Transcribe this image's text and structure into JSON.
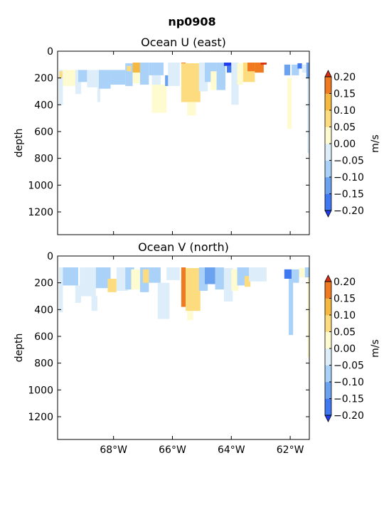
{
  "figure": {
    "suptitle": "np0908"
  },
  "colorscale": {
    "levels": [
      -0.2,
      -0.15,
      -0.1,
      -0.05,
      0.0,
      0.05,
      0.1,
      0.15,
      0.2
    ],
    "level_labels": [
      "−0.20",
      "−0.15",
      "−0.10",
      "−0.05",
      "0.00",
      "0.05",
      "0.10",
      "0.15",
      "0.20"
    ],
    "colors": [
      "#1f3cf0",
      "#3f78f0",
      "#6aa2f0",
      "#aad2f8",
      "#ddeefa",
      "#fffbd0",
      "#fddc80",
      "#f5b840",
      "#f07a20",
      "#d83010"
    ],
    "label": "m/s"
  },
  "chart_data": [
    {
      "type": "heatmap",
      "title": "Ocean U (east)",
      "ylabel": "depth",
      "xlabel": "",
      "xlim": [
        -69.9,
        -61.35
      ],
      "ylim": [
        1370,
        0
      ],
      "yticks": [
        0,
        200,
        400,
        600,
        800,
        1000,
        1200
      ],
      "xticks": [
        -68,
        -66,
        -64,
        -62
      ],
      "xtick_labels": [
        "",
        "",
        "",
        ""
      ],
      "colorbar_label": "m/s",
      "cells": [
        {
          "x0": -69.85,
          "x1": -69.72,
          "d0": 140,
          "d1": 400,
          "v": -0.03
        },
        {
          "x0": -69.84,
          "x1": -69.74,
          "d0": 150,
          "d1": 200,
          "v": 0.07
        },
        {
          "x0": -69.72,
          "x1": -69.2,
          "d0": 140,
          "d1": 260,
          "v": 0.02
        },
        {
          "x0": -69.3,
          "x1": -69.1,
          "d0": 140,
          "d1": 320,
          "v": -0.02
        },
        {
          "x0": -69.2,
          "x1": -68.9,
          "d0": 140,
          "d1": 230,
          "v": -0.07
        },
        {
          "x0": -68.9,
          "x1": -68.5,
          "d0": 140,
          "d1": 270,
          "v": -0.03
        },
        {
          "x0": -68.55,
          "x1": -68.45,
          "d0": 250,
          "d1": 380,
          "v": -0.02
        },
        {
          "x0": -68.5,
          "x1": -68.1,
          "d0": 140,
          "d1": 280,
          "v": -0.07
        },
        {
          "x0": -68.1,
          "x1": -67.6,
          "d0": 140,
          "d1": 250,
          "v": -0.08
        },
        {
          "x0": -67.6,
          "x1": -67.35,
          "d0": 90,
          "d1": 260,
          "v": -0.06
        },
        {
          "x0": -67.55,
          "x1": -67.4,
          "d0": 110,
          "d1": 150,
          "v": 0.07
        },
        {
          "x0": -67.35,
          "x1": -67.1,
          "d0": 85,
          "d1": 160,
          "v": 0.1
        },
        {
          "x0": -67.35,
          "x1": -67.1,
          "d0": 160,
          "d1": 240,
          "v": 0.03
        },
        {
          "x0": -67.1,
          "x1": -66.8,
          "d0": 85,
          "d1": 250,
          "v": -0.07
        },
        {
          "x0": -66.8,
          "x1": -66.3,
          "d0": 85,
          "d1": 180,
          "v": -0.09
        },
        {
          "x0": -66.7,
          "x1": -66.4,
          "d0": 180,
          "d1": 270,
          "v": -0.04
        },
        {
          "x0": -66.7,
          "x1": -66.2,
          "d0": 250,
          "d1": 460,
          "v": 0.03
        },
        {
          "x0": -66.25,
          "x1": -66.1,
          "d0": 180,
          "d1": 260,
          "v": -0.12
        },
        {
          "x0": -66.15,
          "x1": -65.75,
          "d0": 85,
          "d1": 260,
          "v": -0.05
        },
        {
          "x0": -65.7,
          "x1": -65.55,
          "d0": 85,
          "d1": 100,
          "v": 0.18
        },
        {
          "x0": -65.7,
          "x1": -65.05,
          "d0": 90,
          "d1": 380,
          "v": 0.08
        },
        {
          "x0": -65.5,
          "x1": -65.2,
          "d0": 380,
          "d1": 480,
          "v": 0.04
        },
        {
          "x0": -65.1,
          "x1": -64.8,
          "d0": 85,
          "d1": 300,
          "v": -0.05
        },
        {
          "x0": -64.9,
          "x1": -64.5,
          "d0": 85,
          "d1": 230,
          "v": -0.07
        },
        {
          "x0": -64.7,
          "x1": -64.5,
          "d0": 150,
          "d1": 290,
          "v": 0.04
        },
        {
          "x0": -64.5,
          "x1": -64.2,
          "d0": 85,
          "d1": 290,
          "v": -0.07
        },
        {
          "x0": -64.25,
          "x1": -64.0,
          "d0": 85,
          "d1": 110,
          "v": -0.22
        },
        {
          "x0": -64.15,
          "x1": -63.95,
          "d0": 110,
          "d1": 160,
          "v": -0.18
        },
        {
          "x0": -64.0,
          "x1": -63.75,
          "d0": 85,
          "d1": 400,
          "v": -0.04
        },
        {
          "x0": -63.8,
          "x1": -63.6,
          "d0": 90,
          "d1": 250,
          "v": 0.03
        },
        {
          "x0": -63.6,
          "x1": -63.2,
          "d0": 85,
          "d1": 230,
          "v": 0.08
        },
        {
          "x0": -63.45,
          "x1": -63.2,
          "d0": 85,
          "d1": 150,
          "v": 0.16
        },
        {
          "x0": -63.2,
          "x1": -62.9,
          "d0": 85,
          "d1": 160,
          "v": 0.18
        },
        {
          "x0": -63.0,
          "x1": -62.8,
          "d0": 85,
          "d1": 100,
          "v": 0.22
        },
        {
          "x0": -62.2,
          "x1": -62.0,
          "d0": 100,
          "d1": 180,
          "v": -0.13
        },
        {
          "x0": -62.1,
          "x1": -61.95,
          "d0": 200,
          "d1": 580,
          "v": 0.03
        },
        {
          "x0": -61.95,
          "x1": -61.7,
          "d0": 100,
          "d1": 180,
          "v": -0.08
        },
        {
          "x0": -61.75,
          "x1": -61.6,
          "d0": 90,
          "d1": 130,
          "v": -0.16
        },
        {
          "x0": -61.6,
          "x1": -61.45,
          "d0": 100,
          "d1": 160,
          "v": -0.04
        },
        {
          "x0": -61.45,
          "x1": -61.35,
          "d0": 85,
          "d1": 200,
          "v": -0.13
        },
        {
          "x0": -61.42,
          "x1": -61.35,
          "d0": 200,
          "d1": 760,
          "v": -0.02
        }
      ]
    },
    {
      "type": "heatmap",
      "title": "Ocean V (north)",
      "ylabel": "depth",
      "xlabel": "",
      "xlim": [
        -69.9,
        -61.35
      ],
      "ylim": [
        1370,
        0
      ],
      "yticks": [
        0,
        200,
        400,
        600,
        800,
        1000,
        1200
      ],
      "xticks": [
        -68,
        -66,
        -64,
        -62
      ],
      "xtick_labels": [
        "68°W",
        "66°W",
        "64°W",
        "62°W"
      ],
      "colorbar_label": "m/s",
      "cells": [
        {
          "x0": -69.85,
          "x1": -69.72,
          "d0": 85,
          "d1": 420,
          "v": -0.03
        },
        {
          "x0": -69.72,
          "x1": -69.2,
          "d0": 85,
          "d1": 220,
          "v": -0.07
        },
        {
          "x0": -69.3,
          "x1": -69.1,
          "d0": 220,
          "d1": 350,
          "v": -0.02
        },
        {
          "x0": -69.15,
          "x1": -68.6,
          "d0": 85,
          "d1": 300,
          "v": -0.03
        },
        {
          "x0": -68.75,
          "x1": -68.55,
          "d0": 300,
          "d1": 410,
          "v": -0.02
        },
        {
          "x0": -68.6,
          "x1": -68.1,
          "d0": 85,
          "d1": 240,
          "v": -0.06
        },
        {
          "x0": -68.2,
          "x1": -67.9,
          "d0": 170,
          "d1": 270,
          "v": 0.07
        },
        {
          "x0": -67.9,
          "x1": -67.5,
          "d0": 85,
          "d1": 260,
          "v": -0.04
        },
        {
          "x0": -67.6,
          "x1": -67.3,
          "d0": 85,
          "d1": 250,
          "v": -0.08
        },
        {
          "x0": -67.4,
          "x1": -67.1,
          "d0": 100,
          "d1": 250,
          "v": 0.04
        },
        {
          "x0": -67.1,
          "x1": -66.8,
          "d0": 85,
          "d1": 270,
          "v": -0.09
        },
        {
          "x0": -67.0,
          "x1": -66.8,
          "d0": 100,
          "d1": 200,
          "v": 0.07
        },
        {
          "x0": -66.8,
          "x1": -66.4,
          "d0": 85,
          "d1": 200,
          "v": -0.07
        },
        {
          "x0": -66.5,
          "x1": -66.1,
          "d0": 200,
          "d1": 470,
          "v": -0.03
        },
        {
          "x0": -66.2,
          "x1": -65.75,
          "d0": 85,
          "d1": 180,
          "v": -0.05
        },
        {
          "x0": -65.7,
          "x1": -65.55,
          "d0": 85,
          "d1": 380,
          "v": 0.18
        },
        {
          "x0": -65.55,
          "x1": -65.05,
          "d0": 90,
          "d1": 410,
          "v": 0.08
        },
        {
          "x0": -65.5,
          "x1": -65.3,
          "d0": 410,
          "d1": 480,
          "v": 0.04
        },
        {
          "x0": -65.1,
          "x1": -64.8,
          "d0": 85,
          "d1": 260,
          "v": -0.07
        },
        {
          "x0": -64.9,
          "x1": -64.55,
          "d0": 85,
          "d1": 210,
          "v": -0.12
        },
        {
          "x0": -64.55,
          "x1": -64.25,
          "d0": 85,
          "d1": 250,
          "v": -0.08
        },
        {
          "x0": -64.25,
          "x1": -63.95,
          "d0": 90,
          "d1": 340,
          "v": -0.04
        },
        {
          "x0": -64.0,
          "x1": -63.75,
          "d0": 100,
          "d1": 260,
          "v": 0.04
        },
        {
          "x0": -63.8,
          "x1": -63.4,
          "d0": 85,
          "d1": 220,
          "v": -0.08
        },
        {
          "x0": -63.55,
          "x1": -63.35,
          "d0": 150,
          "d1": 230,
          "v": 0.06
        },
        {
          "x0": -63.4,
          "x1": -62.8,
          "d0": 85,
          "d1": 190,
          "v": -0.04
        },
        {
          "x0": -62.2,
          "x1": -61.95,
          "d0": 100,
          "d1": 170,
          "v": -0.17
        },
        {
          "x0": -62.05,
          "x1": -61.9,
          "d0": 170,
          "d1": 590,
          "v": -0.06
        },
        {
          "x0": -61.95,
          "x1": -61.7,
          "d0": 100,
          "d1": 200,
          "v": -0.09
        },
        {
          "x0": -61.7,
          "x1": -61.5,
          "d0": 90,
          "d1": 160,
          "v": 0.03
        },
        {
          "x0": -61.5,
          "x1": -61.35,
          "d0": 85,
          "d1": 160,
          "v": -0.07
        },
        {
          "x0": -61.42,
          "x1": -61.35,
          "d0": 160,
          "d1": 760,
          "v": 0.04
        }
      ]
    }
  ]
}
